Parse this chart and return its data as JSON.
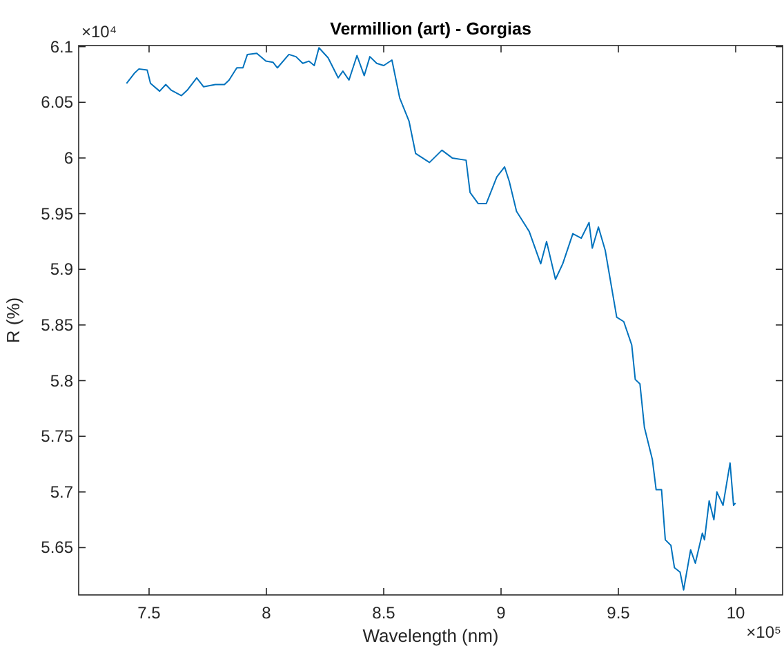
{
  "chart_data": {
    "type": "line",
    "title": "Vermillion (art) - Gorgias",
    "xlabel": "Wavelength (nm)",
    "ylabel": "R (%)",
    "annotations": [
      "×10⁴",
      "×10⁵"
    ],
    "xlim": [
      7.2,
      10.2
    ],
    "xticks": [
      7.5,
      8,
      8.5,
      9,
      9.5,
      10
    ],
    "ylim": [
      5.6075,
      6.101
    ],
    "yticks": [
      5.65,
      5.7,
      5.75,
      5.8,
      5.85,
      5.9,
      5.95,
      6,
      6.05,
      6.1
    ],
    "x": [
      7.404,
      7.437,
      7.457,
      7.492,
      7.506,
      7.545,
      7.571,
      7.594,
      7.638,
      7.663,
      7.703,
      7.732,
      7.782,
      7.821,
      7.841,
      7.874,
      7.9,
      7.919,
      7.959,
      7.998,
      8.028,
      8.047,
      8.096,
      8.126,
      8.155,
      8.181,
      8.204,
      8.224,
      8.263,
      8.306,
      8.326,
      8.352,
      8.386,
      8.417,
      8.441,
      8.47,
      8.5,
      8.535,
      8.568,
      8.608,
      8.636,
      8.695,
      8.748,
      8.792,
      8.851,
      8.868,
      8.903,
      8.937,
      8.982,
      9.015,
      9.035,
      9.066,
      9.12,
      9.169,
      9.194,
      9.232,
      9.263,
      9.306,
      9.342,
      9.375,
      9.389,
      9.415,
      9.444,
      9.493,
      9.523,
      9.557,
      9.572,
      9.592,
      9.611,
      9.645,
      9.661,
      9.684,
      9.7,
      9.724,
      9.739,
      9.763,
      9.778,
      9.808,
      9.828,
      9.858,
      9.867,
      9.887,
      9.907,
      9.92,
      9.946,
      9.976,
      9.991,
      9.999
    ],
    "series": [
      {
        "color": "#0072bd",
        "values": [
          6.067,
          6.076,
          6.08,
          6.079,
          6.067,
          6.06,
          6.066,
          6.061,
          6.056,
          6.061,
          6.072,
          6.064,
          6.066,
          6.066,
          6.07,
          6.081,
          6.081,
          6.093,
          6.094,
          6.087,
          6.086,
          6.081,
          6.093,
          6.091,
          6.085,
          6.087,
          6.083,
          6.099,
          6.09,
          6.072,
          6.078,
          6.07,
          6.092,
          6.074,
          6.091,
          6.085,
          6.083,
          6.088,
          6.054,
          6.033,
          6.004,
          5.996,
          6.007,
          6,
          5.998,
          5.969,
          5.959,
          5.959,
          5.983,
          5.992,
          5.979,
          5.952,
          5.934,
          5.905,
          5.925,
          5.891,
          5.905,
          5.932,
          5.928,
          5.942,
          5.919,
          5.938,
          5.917,
          5.857,
          5.853,
          5.832,
          5.801,
          5.797,
          5.758,
          5.729,
          5.702,
          5.702,
          5.657,
          5.652,
          5.632,
          5.628,
          5.612,
          5.648,
          5.636,
          5.663,
          5.657,
          5.692,
          5.675,
          5.7,
          5.688,
          5.726,
          5.688,
          5.69
        ]
      }
    ]
  }
}
